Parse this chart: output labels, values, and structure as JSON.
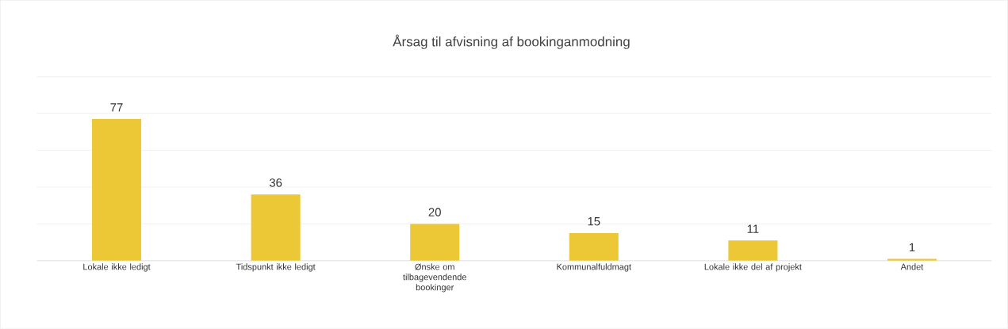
{
  "chart_data": {
    "type": "bar",
    "title": "Årsag til afvisning af bookinganmodning",
    "categories": [
      "Lokale ikke ledigt",
      "Tidspunkt ikke ledigt",
      "Ønske om tilbagevendende bookinger",
      "Kommunalfuldmagt",
      "Lokale ikke del af projekt",
      "Andet"
    ],
    "values": [
      77,
      36,
      20,
      15,
      11,
      1
    ],
    "color": "#ecc836",
    "ylim": [
      0,
      100
    ],
    "yticks": [
      {
        "value": 0,
        "label": null
      },
      {
        "value": 20,
        "label": null
      },
      {
        "value": 40,
        "label": null
      },
      {
        "value": 60,
        "label": null
      },
      {
        "value": 80,
        "label": null
      },
      {
        "value": 100,
        "label": null
      }
    ],
    "grid": "y",
    "tick_labels": "x",
    "data_labels": true
  }
}
